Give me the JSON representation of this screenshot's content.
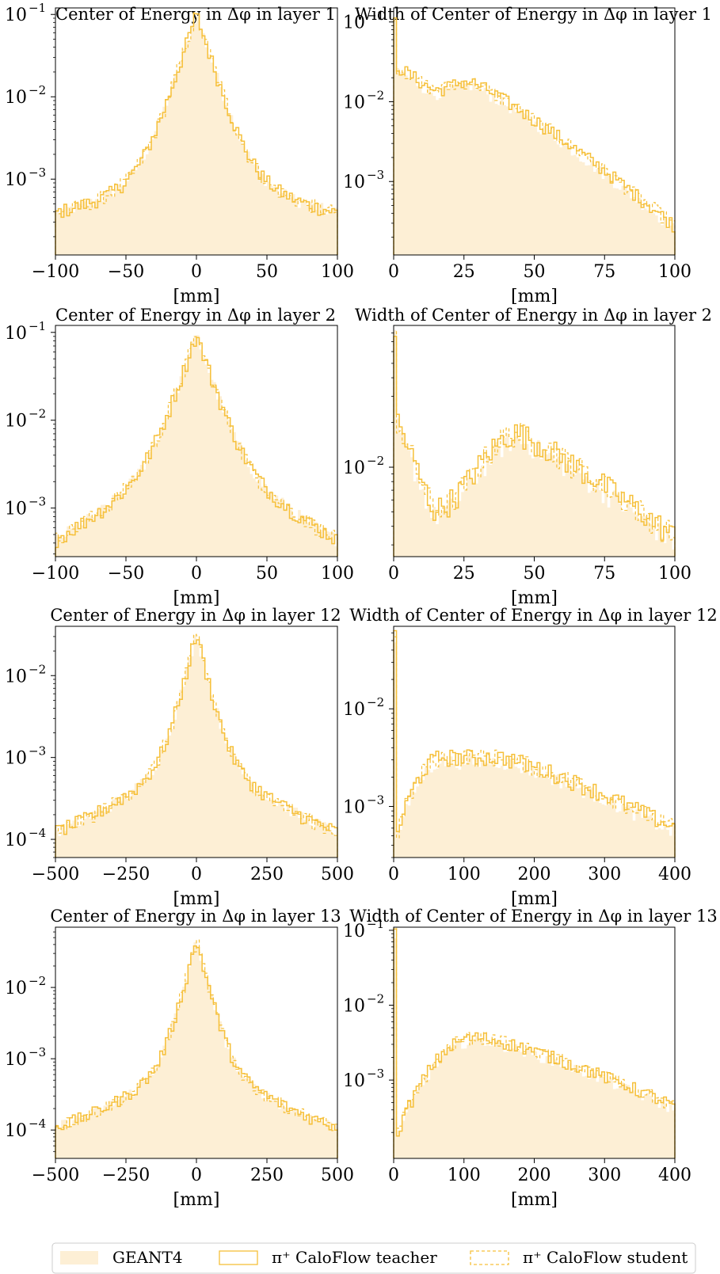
{
  "colors": {
    "geant": "#fdefd5",
    "teacher": "#f6c03a",
    "student": "#f6c03a",
    "axes": "#000000"
  },
  "legend": {
    "placement": "bottom",
    "items": [
      {
        "label": "GEANT4",
        "style": "fill"
      },
      {
        "label": "π⁺ CaloFlow teacher",
        "style": "solid"
      },
      {
        "label": "π⁺ CaloFlow student",
        "style": "dashed"
      }
    ]
  },
  "chart_data": [
    {
      "type": "histogram",
      "title": "Center of Energy in Δφ in layer 1",
      "xlabel": "[mm]",
      "yscale": "log",
      "xlim": [
        -100,
        100
      ],
      "ylim": [
        0.00012,
        0.12
      ],
      "xticks": [
        {
          "v": -100,
          "label": "−100"
        },
        {
          "v": -50,
          "label": "−50"
        },
        {
          "v": 0,
          "label": "0"
        },
        {
          "v": 50,
          "label": "50"
        },
        {
          "v": 100,
          "label": "100"
        }
      ],
      "yticks": [
        {
          "v": 0.1,
          "base": "10",
          "exp": "−1"
        },
        {
          "v": 0.01,
          "base": "10",
          "exp": "−2"
        },
        {
          "v": 0.001,
          "base": "10",
          "exp": "−3"
        }
      ],
      "shape": {
        "kind": "cusp",
        "peak": 0.1,
        "tau": 8,
        "tail": 0.002,
        "tau2": 35,
        "floor": 0.00028
      },
      "series": [
        {
          "name": "GEANT4"
        },
        {
          "name": "π⁺ CaloFlow teacher"
        },
        {
          "name": "π⁺ CaloFlow student"
        }
      ]
    },
    {
      "type": "histogram",
      "title": "Width of Center of Energy in Δφ in layer 1",
      "xlabel": "[mm]",
      "yscale": "log",
      "xlim": [
        0,
        100
      ],
      "ylim": [
        0.00012,
        0.15
      ],
      "xticks": [
        {
          "v": 0,
          "label": "0"
        },
        {
          "v": 25,
          "label": "25"
        },
        {
          "v": 50,
          "label": "50"
        },
        {
          "v": 75,
          "label": "75"
        },
        {
          "v": 100,
          "label": "100"
        }
      ],
      "yticks": [
        {
          "v": 0.1,
          "base": "10",
          "exp": "−1"
        },
        {
          "v": 0.01,
          "base": "10",
          "exp": "−2"
        },
        {
          "v": 0.001,
          "base": "10",
          "exp": "−3"
        }
      ],
      "shape": {
        "kind": "width",
        "spike": 0.1,
        "dip": 0.014,
        "dipx": 14,
        "hump": 0.018,
        "humpx": 27,
        "end": 0.00028,
        "startx": 0
      },
      "series": [
        {
          "name": "GEANT4"
        },
        {
          "name": "π⁺ CaloFlow teacher"
        },
        {
          "name": "π⁺ CaloFlow student"
        }
      ]
    },
    {
      "type": "histogram",
      "title": "Center of Energy in Δφ in layer 2",
      "xlabel": "[mm]",
      "yscale": "log",
      "xlim": [
        -100,
        100
      ],
      "ylim": [
        0.00028,
        0.12
      ],
      "xticks": [
        {
          "v": -100,
          "label": "−100"
        },
        {
          "v": -50,
          "label": "−50"
        },
        {
          "v": 0,
          "label": "0"
        },
        {
          "v": 50,
          "label": "50"
        },
        {
          "v": 100,
          "label": "100"
        }
      ],
      "yticks": [
        {
          "v": 0.1,
          "base": "10",
          "exp": "−1"
        },
        {
          "v": 0.01,
          "base": "10",
          "exp": "−2"
        },
        {
          "v": 0.001,
          "base": "10",
          "exp": "−3"
        }
      ],
      "shape": {
        "kind": "cusp",
        "peak": 0.09,
        "tau": 9,
        "tail": 0.004,
        "tau2": 45,
        "floor": 0.0
      },
      "series": [
        {
          "name": "GEANT4"
        },
        {
          "name": "π⁺ CaloFlow teacher"
        },
        {
          "name": "π⁺ CaloFlow student"
        }
      ]
    },
    {
      "type": "histogram",
      "title": "Width of Center of Energy in Δφ in layer 2",
      "xlabel": "[mm]",
      "yscale": "log",
      "xlim": [
        0,
        100
      ],
      "ylim": [
        0.0025,
        0.09
      ],
      "xticks": [
        {
          "v": 0,
          "label": "0"
        },
        {
          "v": 25,
          "label": "25"
        },
        {
          "v": 50,
          "label": "50"
        },
        {
          "v": 75,
          "label": "75"
        },
        {
          "v": 100,
          "label": "100"
        }
      ],
      "yticks": [
        {
          "v": 0.01,
          "base": "10",
          "exp": "−2"
        }
      ],
      "shape": {
        "kind": "width",
        "spike": 0.08,
        "dip": 0.0052,
        "dipx": 14,
        "hump": 0.017,
        "humpx": 44,
        "end": 0.0034,
        "startx": 0
      },
      "series": [
        {
          "name": "GEANT4"
        },
        {
          "name": "π⁺ CaloFlow teacher"
        },
        {
          "name": "π⁺ CaloFlow student"
        }
      ]
    },
    {
      "type": "histogram",
      "title": "Center of Energy in Δφ in layer 12",
      "xlabel": "[mm]",
      "yscale": "log",
      "xlim": [
        -500,
        500
      ],
      "ylim": [
        6e-05,
        0.04
      ],
      "xticks": [
        {
          "v": -500,
          "label": "−500"
        },
        {
          "v": -250,
          "label": "−250"
        },
        {
          "v": 0,
          "label": "0"
        },
        {
          "v": 250,
          "label": "250"
        },
        {
          "v": 500,
          "label": "500"
        }
      ],
      "yticks": [
        {
          "v": 0.01,
          "base": "10",
          "exp": "−2"
        },
        {
          "v": 0.001,
          "base": "10",
          "exp": "−3"
        },
        {
          "v": 0.0001,
          "base": "10",
          "exp": "−4"
        }
      ],
      "shape": {
        "kind": "cusp",
        "peak": 0.032,
        "tau": 30,
        "tail": 0.0012,
        "tau2": 170,
        "floor": 6e-05
      },
      "series": [
        {
          "name": "GEANT4"
        },
        {
          "name": "π⁺ CaloFlow teacher"
        },
        {
          "name": "π⁺ CaloFlow student"
        }
      ]
    },
    {
      "type": "histogram",
      "title": "Width of Center of Energy in Δφ in layer 12",
      "xlabel": "[mm]",
      "yscale": "log",
      "xlim": [
        0,
        400
      ],
      "ylim": [
        0.0003,
        0.07
      ],
      "xticks": [
        {
          "v": 0,
          "label": "0"
        },
        {
          "v": 100,
          "label": "100"
        },
        {
          "v": 200,
          "label": "200"
        },
        {
          "v": 300,
          "label": "300"
        },
        {
          "v": 400,
          "label": "400"
        }
      ],
      "yticks": [
        {
          "v": 0.01,
          "base": "10",
          "exp": "−2"
        },
        {
          "v": 0.001,
          "base": "10",
          "exp": "−3"
        }
      ],
      "shape": {
        "kind": "rise",
        "spike": 0.06,
        "low": 0.0004,
        "riseto": 0.0032,
        "risex": 70,
        "plateaux": 150,
        "end": 0.0006
      },
      "series": [
        {
          "name": "GEANT4"
        },
        {
          "name": "π⁺ CaloFlow teacher"
        },
        {
          "name": "π⁺ CaloFlow student"
        }
      ]
    },
    {
      "type": "histogram",
      "title": "Center of Energy in Δφ in layer 13",
      "xlabel": "[mm]",
      "yscale": "log",
      "xlim": [
        -500,
        500
      ],
      "ylim": [
        4e-05,
        0.07
      ],
      "xticks": [
        {
          "v": -500,
          "label": "−500"
        },
        {
          "v": -250,
          "label": "−250"
        },
        {
          "v": 0,
          "label": "0"
        },
        {
          "v": 250,
          "label": "250"
        },
        {
          "v": 500,
          "label": "500"
        }
      ],
      "yticks": [
        {
          "v": 0.01,
          "base": "10",
          "exp": "−2"
        },
        {
          "v": 0.001,
          "base": "10",
          "exp": "−3"
        },
        {
          "v": 0.0001,
          "base": "10",
          "exp": "−4"
        }
      ],
      "shape": {
        "kind": "cusp",
        "peak": 0.045,
        "tau": 28,
        "tail": 0.0012,
        "tau2": 150,
        "floor": 7e-05
      },
      "series": [
        {
          "name": "GEANT4"
        },
        {
          "name": "π⁺ CaloFlow teacher"
        },
        {
          "name": "π⁺ CaloFlow student"
        }
      ]
    },
    {
      "type": "histogram",
      "title": "Width of Center of Energy in Δφ in layer 13",
      "xlabel": "[mm]",
      "yscale": "log",
      "xlim": [
        0,
        400
      ],
      "ylim": [
        9e-05,
        0.11
      ],
      "xticks": [
        {
          "v": 0,
          "label": "0"
        },
        {
          "v": 100,
          "label": "100"
        },
        {
          "v": 200,
          "label": "200"
        },
        {
          "v": 300,
          "label": "300"
        },
        {
          "v": 400,
          "label": "400"
        }
      ],
      "yticks": [
        {
          "v": 0.1,
          "base": "10",
          "exp": "−1"
        },
        {
          "v": 0.01,
          "base": "10",
          "exp": "−2"
        },
        {
          "v": 0.001,
          "base": "10",
          "exp": "−3"
        }
      ],
      "shape": {
        "kind": "rise",
        "spike": 0.09,
        "low": 0.00015,
        "riseto": 0.0037,
        "risex": 115,
        "plateaux": 125,
        "end": 0.00045
      },
      "series": [
        {
          "name": "GEANT4"
        },
        {
          "name": "π⁺ CaloFlow teacher"
        },
        {
          "name": "π⁺ CaloFlow student"
        }
      ]
    }
  ]
}
